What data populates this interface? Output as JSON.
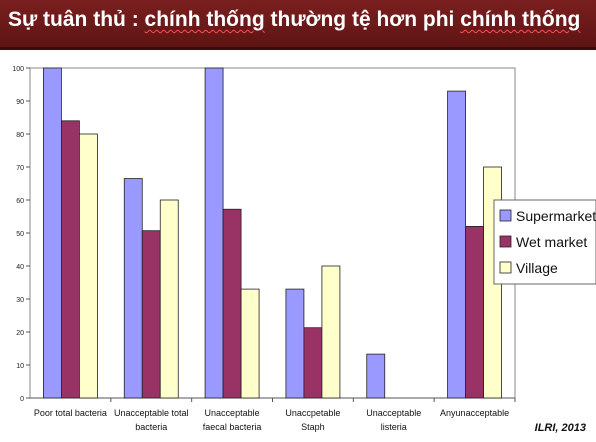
{
  "title": {
    "prefix": "Sự tuân thủ : ",
    "underlined": "chính thống",
    "suffix": " thường tệ hơn phi ",
    "underlined2": "chính thống"
  },
  "source": "ILRI, 2013",
  "chart_data": {
    "type": "bar",
    "categories": [
      [
        "Poor total bacteria"
      ],
      [
        "Unacceptable total",
        "bacteria"
      ],
      [
        "Unacceptable",
        "faecal bacteria"
      ],
      [
        "Unaccpetable",
        "Staph"
      ],
      [
        "Unacceptable",
        "listeria"
      ],
      [
        "Anyunacceptable"
      ]
    ],
    "series": [
      {
        "name": "Supermarket",
        "color": "#9999ff",
        "values": [
          100,
          66.5,
          100,
          33,
          13.3,
          93
        ]
      },
      {
        "name": "Wet market",
        "color": "#993366",
        "values": [
          84,
          50.7,
          57.2,
          21.3,
          0,
          52
        ]
      },
      {
        "name": "Village",
        "color": "#ffffcc",
        "values": [
          80,
          60,
          33,
          40,
          0,
          70
        ]
      }
    ],
    "ylim": [
      0,
      100
    ],
    "yticks": [
      0,
      10,
      20,
      30,
      40,
      50,
      60,
      70,
      80,
      90,
      100
    ],
    "legend_position": "right",
    "grid": false
  }
}
